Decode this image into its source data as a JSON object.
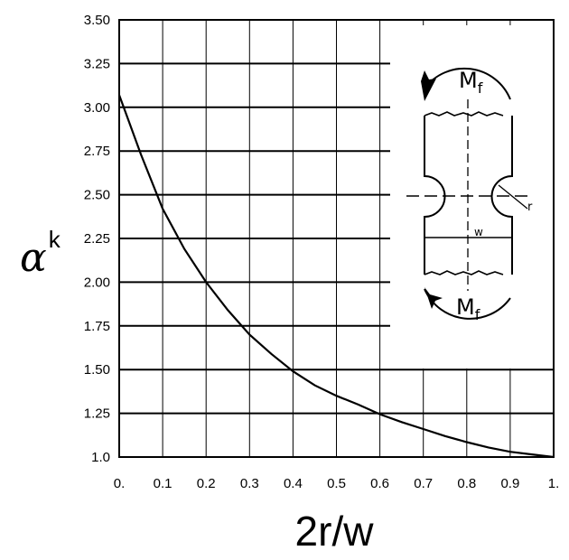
{
  "chart_data": {
    "type": "line",
    "xlabel": "2r/w",
    "ylabel_symbol": "α",
    "ylabel_subscript": "k",
    "xlim": [
      0,
      1.0
    ],
    "ylim": [
      1.0,
      3.5
    ],
    "xticks": [
      "0.",
      "0.1",
      "0.2",
      "0.3",
      "0.4",
      "0.5",
      "0.6",
      "0.7",
      "0.8",
      "0.9",
      "1."
    ],
    "yticks": [
      "3.50",
      "3.25",
      "3.00",
      "2.75",
      "2.50",
      "2.25",
      "2.00",
      "1.75",
      "1.50",
      "1.25",
      "1.0"
    ],
    "grid": true,
    "series": [
      {
        "x": [
          0.0,
          0.05,
          0.1,
          0.15,
          0.2,
          0.25,
          0.3,
          0.35,
          0.4,
          0.45,
          0.5,
          0.55,
          0.6,
          0.65,
          0.7,
          0.75,
          0.8,
          0.85,
          0.9,
          0.95,
          1.0
        ],
        "values": [
          3.07,
          2.73,
          2.42,
          2.19,
          2.0,
          1.84,
          1.7,
          1.59,
          1.49,
          1.41,
          1.35,
          1.3,
          1.245,
          1.2,
          1.16,
          1.12,
          1.085,
          1.055,
          1.03,
          1.015,
          1.0
        ]
      }
    ],
    "inset": {
      "moment_label_main": "M",
      "moment_label_sub": "f",
      "radius_label": "r",
      "width_label": "w"
    }
  }
}
